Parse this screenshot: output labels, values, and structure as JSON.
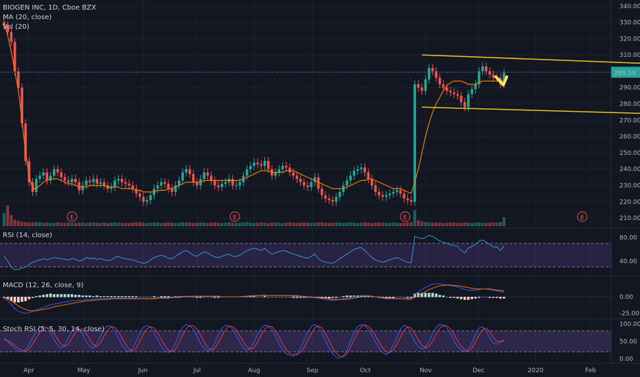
{
  "legend": {
    "symbol": "BIOGEN INC, 1D, Cboe BZX",
    "ma": "MA (20, close)",
    "vol": "Vol (20)"
  },
  "price_tag": "299.39",
  "annotations": {
    "earnings_marker": "E"
  },
  "colors": {
    "background": "#131722",
    "up": "#26a69a",
    "down": "#ef5350",
    "ma": "#f57c00",
    "rsi": "#2e9ed6",
    "macd": "#2962ff",
    "signal": "#ff6d00",
    "stoch_k": "#2962ff",
    "stoch_d": "#f23645",
    "channel": "#f5c518",
    "arrow": "#f5e663",
    "band": "#7e57c2"
  },
  "chart_data": [
    {
      "type": "candlestick",
      "title": "BIOGEN INC, 1D, Cboe BZX",
      "x_ticks": [
        "Apr",
        "May",
        "Jun",
        "Jul",
        "Aug",
        "Sep",
        "Oct",
        "Nov",
        "Dec",
        "2020",
        "Feb"
      ],
      "y_ticks": [
        "340.00",
        "330.00",
        "320.00",
        "310.00",
        "300.00",
        "290.00",
        "280.00",
        "270.00",
        "260.00",
        "250.00",
        "240.00",
        "230.00",
        "220.00",
        "210.00"
      ],
      "ylim": [
        205,
        342
      ],
      "price_line": 299.39,
      "close_series": [
        328,
        324,
        318,
        300,
        290,
        268,
        245,
        232,
        226,
        234,
        236,
        238,
        233,
        236,
        240,
        238,
        235,
        233,
        232,
        234,
        232,
        227,
        230,
        233,
        232,
        234,
        231,
        232,
        230,
        228,
        229,
        233,
        234,
        232,
        231,
        230,
        228,
        225,
        223,
        220,
        221,
        224,
        228,
        230,
        232,
        231,
        228,
        226,
        230,
        233,
        238,
        240,
        237,
        232,
        230,
        234,
        238,
        236,
        233,
        230,
        229,
        231,
        232,
        234,
        230,
        230,
        232,
        236,
        240,
        242,
        244,
        243,
        242,
        245,
        240,
        236,
        238,
        240,
        242,
        241,
        238,
        236,
        234,
        232,
        230,
        229,
        232,
        235,
        228,
        224,
        222,
        221,
        220,
        223,
        226,
        230,
        233,
        236,
        239,
        240,
        241,
        238,
        234,
        230,
        226,
        224,
        223,
        224,
        225,
        226,
        227,
        225,
        222,
        221,
        220,
        292,
        290,
        288,
        295,
        302,
        300,
        296,
        292,
        290,
        288,
        287,
        286,
        285,
        281,
        278,
        286,
        289,
        292,
        300,
        303,
        300,
        298,
        296,
        296,
        292,
        299
      ],
      "ma20_series": [
        330,
        322,
        312,
        300,
        288,
        270,
        250,
        236,
        228,
        228,
        230,
        232,
        233,
        234,
        234,
        234,
        233,
        232,
        231,
        231,
        230,
        229,
        229,
        229,
        230,
        230,
        230,
        230,
        230,
        229,
        229,
        229,
        229,
        228,
        228,
        228,
        228,
        227,
        227,
        226,
        226,
        226,
        226,
        227,
        227,
        227,
        228,
        228,
        229,
        230,
        231,
        232,
        232,
        232,
        232,
        232,
        233,
        233,
        233,
        233,
        233,
        233,
        233,
        233,
        233,
        233,
        233,
        234,
        235,
        236,
        237,
        238,
        239,
        239,
        239,
        238,
        238,
        238,
        238,
        239,
        239,
        239,
        238,
        237,
        236,
        235,
        234,
        233,
        232,
        231,
        230,
        229,
        228,
        228,
        228,
        228,
        229,
        230,
        231,
        232,
        233,
        233,
        234,
        234,
        233,
        232,
        231,
        230,
        229,
        228,
        228,
        228,
        227,
        226,
        225,
        232,
        240,
        250,
        260,
        268,
        275,
        280,
        284,
        288,
        291,
        293,
        294,
        294,
        294,
        293,
        292,
        292,
        292,
        293,
        294,
        294,
        294,
        294,
        294,
        294,
        294
      ],
      "volume_series": [
        45,
        70,
        38,
        22,
        18,
        15,
        14,
        12,
        13,
        15,
        14,
        12,
        13,
        11,
        12,
        14,
        12,
        11,
        13,
        12,
        11,
        12,
        13,
        11,
        12,
        13,
        12,
        11,
        12,
        11,
        12,
        13,
        12,
        11,
        12,
        11,
        12,
        13,
        14,
        12,
        11,
        12,
        13,
        12,
        11,
        12,
        13,
        12,
        11,
        12,
        14,
        13,
        12,
        11,
        12,
        13,
        12,
        11,
        12,
        13,
        12,
        11,
        12,
        13,
        12,
        11,
        12,
        13,
        14,
        12,
        11,
        12,
        13,
        12,
        11,
        12,
        13,
        12,
        11,
        12,
        13,
        12,
        11,
        12,
        13,
        12,
        11,
        12,
        13,
        14,
        12,
        11,
        12,
        13,
        12,
        11,
        12,
        13,
        12,
        11,
        12,
        13,
        12,
        11,
        12,
        13,
        12,
        11,
        12,
        13,
        12,
        11,
        12,
        13,
        14,
        55,
        20,
        16,
        14,
        13,
        12,
        13,
        12,
        11,
        12,
        13,
        12,
        11,
        12,
        13,
        12,
        11,
        12,
        13,
        12,
        11,
        12,
        13,
        12,
        14,
        30
      ],
      "channel_upper": [
        [
          287,
          310
        ],
        [
          383,
          302
        ]
      ],
      "channel_lower": [
        [
          287,
          278
        ],
        [
          383,
          272
        ]
      ]
    },
    {
      "type": "line",
      "title": "RSI (14, close)",
      "y_ticks": [
        "80.00",
        "40.00"
      ],
      "ylim": [
        20,
        90
      ],
      "bands": [
        70,
        30
      ],
      "rsi_series": [
        48,
        40,
        30,
        25,
        26,
        28,
        30,
        34,
        38,
        40,
        42,
        44,
        42,
        44,
        46,
        45,
        44,
        43,
        42,
        44,
        43,
        40,
        42,
        46,
        44,
        45,
        43,
        44,
        42,
        41,
        42,
        46,
        48,
        45,
        44,
        43,
        42,
        40,
        38,
        36,
        38,
        42,
        46,
        48,
        50,
        48,
        45,
        44,
        48,
        52,
        56,
        58,
        54,
        50,
        48,
        52,
        56,
        54,
        50,
        47,
        46,
        48,
        50,
        52,
        48,
        48,
        50,
        54,
        58,
        60,
        62,
        60,
        58,
        62,
        56,
        52,
        54,
        56,
        58,
        57,
        54,
        52,
        50,
        48,
        46,
        45,
        48,
        52,
        44,
        40,
        38,
        37,
        36,
        40,
        44,
        48,
        52,
        56,
        60,
        62,
        63,
        58,
        52,
        46,
        42,
        40,
        38,
        40,
        42,
        44,
        46,
        44,
        40,
        38,
        37,
        82,
        80,
        78,
        80,
        84,
        82,
        78,
        74,
        72,
        70,
        68,
        66,
        65,
        58,
        54,
        62,
        65,
        68,
        74,
        76,
        72,
        68,
        64,
        64,
        58,
        66
      ]
    },
    {
      "type": "line",
      "title": "MACD (12, 26, close, 9)",
      "y_ticks": [
        "0.00",
        "-25.00"
      ],
      "ylim": [
        -28,
        26
      ],
      "macd_series": [
        -2,
        -6,
        -12,
        -18,
        -22,
        -24,
        -25,
        -24,
        -22,
        -20,
        -18,
        -16,
        -14,
        -12,
        -11,
        -10,
        -9,
        -8,
        -7,
        -6,
        -6,
        -5,
        -5,
        -4,
        -4,
        -4,
        -3,
        -3,
        -3,
        -3,
        -2,
        -2,
        -2,
        -2,
        -2,
        -2,
        -2,
        -2,
        -3,
        -3,
        -3,
        -3,
        -2,
        -2,
        -1,
        -1,
        -1,
        -1,
        0,
        0,
        1,
        1,
        1,
        1,
        0,
        0,
        1,
        1,
        1,
        0,
        0,
        0,
        0,
        0,
        0,
        0,
        0,
        1,
        1,
        2,
        2,
        2,
        2,
        3,
        2,
        2,
        2,
        2,
        2,
        2,
        2,
        1,
        1,
        0,
        0,
        -1,
        -1,
        -1,
        -2,
        -3,
        -4,
        -5,
        -5,
        -5,
        -4,
        -3,
        -2,
        -1,
        0,
        1,
        2,
        2,
        2,
        1,
        0,
        -1,
        -2,
        -3,
        -3,
        -3,
        -3,
        -3,
        -3,
        -4,
        -4,
        4,
        8,
        11,
        14,
        17,
        19,
        20,
        20,
        19,
        18,
        17,
        16,
        15,
        13,
        11,
        10,
        10,
        10,
        11,
        12,
        12,
        11,
        10,
        9,
        8,
        7
      ],
      "signal_series": [
        -1,
        -3,
        -6,
        -10,
        -14,
        -17,
        -19,
        -21,
        -21,
        -21,
        -20,
        -19,
        -18,
        -17,
        -15,
        -14,
        -13,
        -12,
        -11,
        -10,
        -9,
        -8,
        -7,
        -6,
        -6,
        -5,
        -5,
        -4,
        -4,
        -4,
        -3,
        -3,
        -3,
        -3,
        -3,
        -3,
        -3,
        -3,
        -3,
        -3,
        -3,
        -3,
        -3,
        -2,
        -2,
        -2,
        -2,
        -1,
        -1,
        -1,
        0,
        0,
        0,
        1,
        1,
        1,
        1,
        1,
        1,
        1,
        1,
        0,
        0,
        0,
        0,
        0,
        0,
        0,
        1,
        1,
        1,
        2,
        2,
        2,
        2,
        2,
        2,
        2,
        2,
        2,
        2,
        2,
        2,
        1,
        1,
        0,
        0,
        -1,
        -1,
        -2,
        -2,
        -3,
        -4,
        -4,
        -4,
        -4,
        -4,
        -3,
        -2,
        -1,
        0,
        1,
        1,
        1,
        0,
        0,
        -1,
        -2,
        -2,
        -2,
        -3,
        -3,
        -3,
        -3,
        -3,
        -1,
        2,
        5,
        8,
        11,
        13,
        15,
        17,
        17,
        18,
        18,
        17,
        17,
        16,
        15,
        14,
        13,
        12,
        12,
        12,
        12,
        12,
        11,
        10,
        10,
        9
      ],
      "zero_line": 0
    },
    {
      "type": "line",
      "title": "Stoch RSI (5, 5, 30, 14, close)",
      "y_ticks": [
        "100.00",
        "50.00",
        "0.00"
      ],
      "ylim": [
        -5,
        105
      ],
      "bands": [
        80,
        20
      ],
      "k_series": [
        60,
        50,
        40,
        30,
        22,
        20,
        25,
        40,
        60,
        80,
        90,
        92,
        88,
        75,
        55,
        40,
        30,
        40,
        60,
        80,
        90,
        85,
        70,
        50,
        35,
        30,
        45,
        65,
        85,
        95,
        92,
        80,
        60,
        40,
        25,
        20,
        30,
        50,
        72,
        90,
        95,
        90,
        75,
        55,
        35,
        22,
        18,
        25,
        45,
        70,
        90,
        98,
        95,
        85,
        65,
        45,
        30,
        22,
        28,
        45,
        68,
        88,
        96,
        95,
        85,
        68,
        48,
        32,
        25,
        30,
        48,
        70,
        88,
        96,
        94,
        85,
        65,
        42,
        25,
        15,
        10,
        8,
        15,
        30,
        52,
        75,
        92,
        98,
        92,
        75,
        52,
        30,
        15,
        5,
        2,
        8,
        25,
        50,
        75,
        92,
        98,
        96,
        85,
        68,
        48,
        30,
        18,
        12,
        20,
        40,
        62,
        85,
        96,
        90,
        70,
        50,
        35,
        28,
        32,
        50,
        72,
        90,
        98,
        96,
        88,
        72,
        52,
        35,
        25,
        20,
        25,
        45,
        70,
        88,
        92,
        80,
        60,
        45,
        42,
        50,
        55
      ],
      "d_series": [
        55,
        52,
        46,
        38,
        30,
        24,
        22,
        28,
        42,
        60,
        76,
        86,
        90,
        85,
        72,
        56,
        42,
        36,
        42,
        60,
        76,
        85,
        85,
        72,
        56,
        40,
        35,
        46,
        65,
        82,
        92,
        90,
        78,
        60,
        42,
        28,
        22,
        30,
        50,
        70,
        86,
        92,
        88,
        75,
        56,
        38,
        25,
        20,
        28,
        46,
        68,
        86,
        95,
        95,
        85,
        68,
        48,
        32,
        25,
        30,
        46,
        66,
        84,
        93,
        92,
        82,
        66,
        48,
        34,
        28,
        32,
        48,
        68,
        85,
        93,
        92,
        80,
        62,
        42,
        26,
        16,
        12,
        12,
        18,
        32,
        52,
        72,
        88,
        94,
        88,
        72,
        52,
        32,
        16,
        8,
        6,
        14,
        32,
        55,
        76,
        92,
        97,
        93,
        83,
        66,
        47,
        32,
        20,
        18,
        26,
        42,
        62,
        82,
        92,
        88,
        72,
        54,
        40,
        32,
        36,
        50,
        70,
        88,
        96,
        94,
        85,
        70,
        52,
        36,
        26,
        22,
        30,
        48,
        68,
        84,
        88,
        78,
        62,
        50,
        48,
        52
      ]
    }
  ]
}
